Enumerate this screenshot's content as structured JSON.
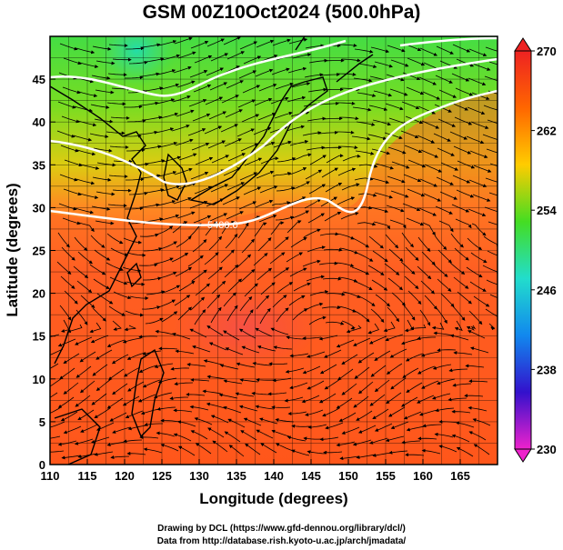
{
  "title": "GSM 00Z10Oct2024 (500.0hPa)",
  "x_axis": {
    "label": "Longitude (degrees)",
    "range": [
      110,
      170
    ],
    "ticks": [
      "110",
      "115",
      "120",
      "125",
      "130",
      "135",
      "140",
      "145",
      "150",
      "155",
      "160",
      "165"
    ]
  },
  "y_axis": {
    "label": "Latitude  (degrees)",
    "range": [
      0,
      50
    ],
    "ticks": [
      "0",
      "5",
      "10",
      "15",
      "20",
      "25",
      "30",
      "35",
      "40",
      "45"
    ]
  },
  "colorbar": {
    "ticks": [
      "230",
      "238",
      "246",
      "254",
      "262",
      "270"
    ],
    "range": [
      230,
      270
    ],
    "colors": [
      "#ee22cc",
      "#3311cc",
      "#1188ee",
      "#22ddcc",
      "#44dd22",
      "#ffcc00",
      "#ff6600",
      "#ee2222"
    ]
  },
  "contour_label": "5400.0",
  "credits": {
    "line1": "Drawing by DCL (https://www.gfd-dennou.org/library/dcl/)",
    "line2": "Data from http://database.rish.kyoto-u.ac.jp/arch/jmadata/"
  }
}
